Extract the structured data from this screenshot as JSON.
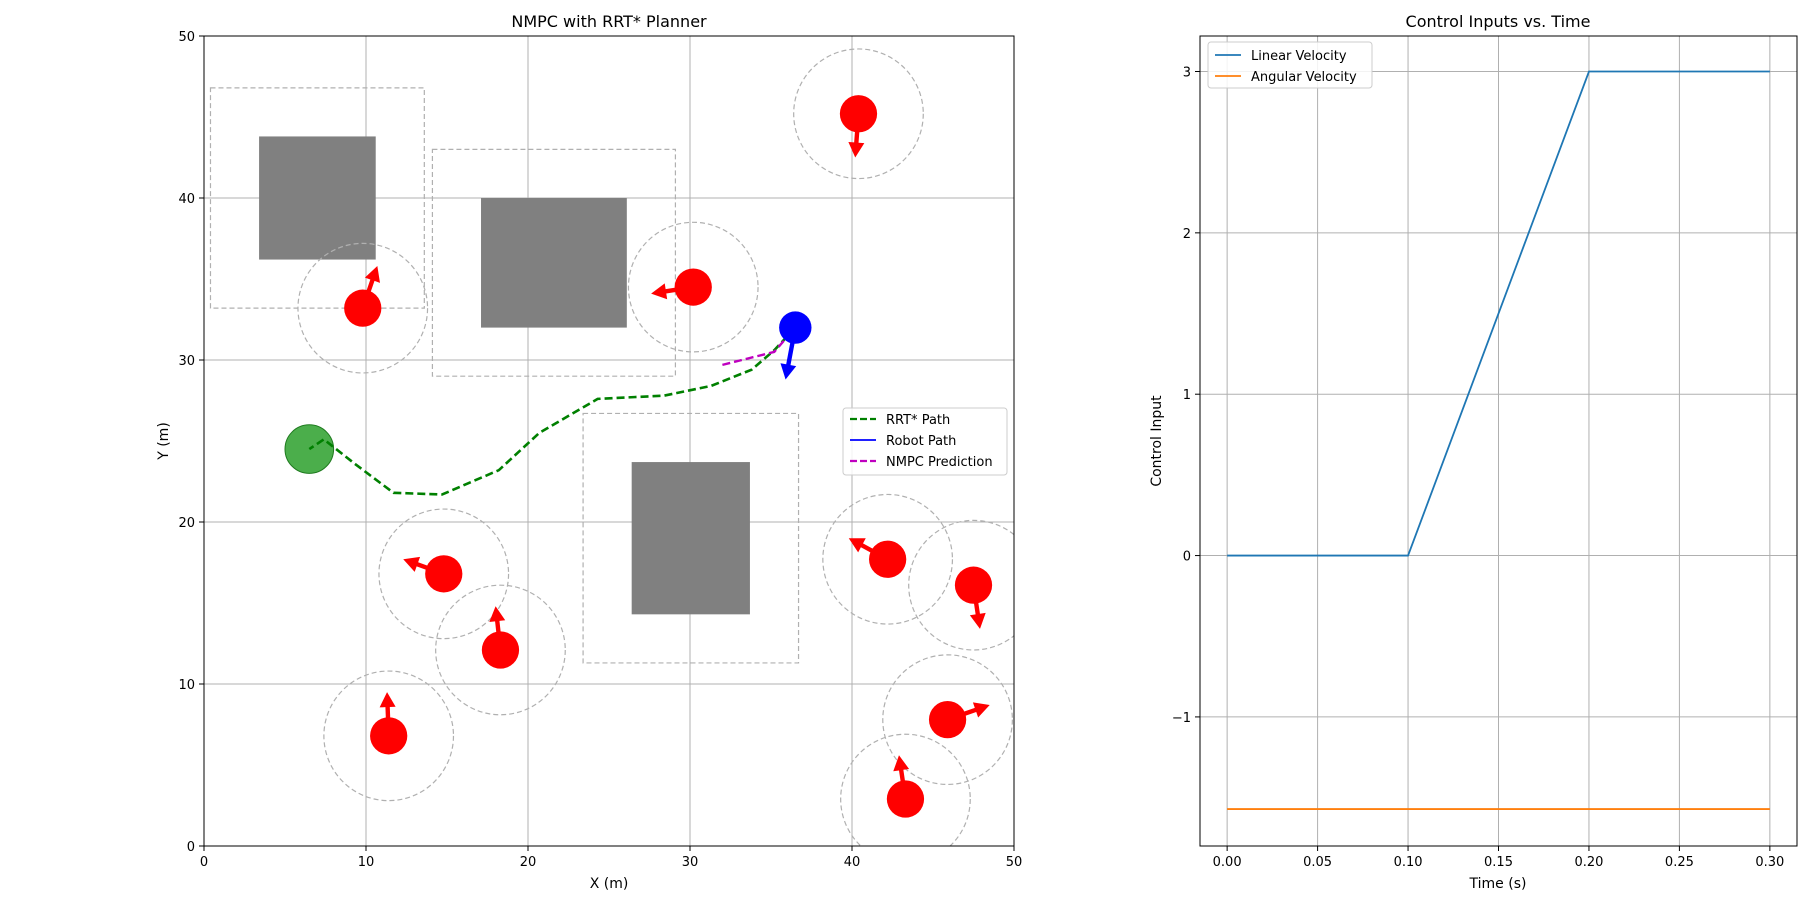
{
  "chart_data": [
    {
      "type": "scatter",
      "title": "NMPC with RRT* Planner",
      "xlabel": "X (m)",
      "ylabel": "Y (m)",
      "xlim": [
        0,
        50
      ],
      "ylim": [
        0,
        50
      ],
      "xticks": [
        0,
        10,
        20,
        30,
        40,
        50
      ],
      "yticks": [
        0,
        10,
        20,
        30,
        40,
        50
      ],
      "grid": true,
      "equal_aspect": true,
      "legend_position": "center-right",
      "legend": [
        "RRT* Path",
        "Robot Path",
        "NMPC Prediction"
      ],
      "colors": {
        "rrt_path": "#008000",
        "robot_path": "#0000ff",
        "nmpc_prediction": "#bf00bf",
        "robot": "#0000ff",
        "goal": "#2ca02c",
        "moving_obstacle": "#ff0000",
        "static_obstacle": "#808080",
        "safety_margin": "#b0b0b0"
      },
      "static_obstacles": [
        {
          "x": [
            3.4,
            10.6
          ],
          "y": [
            36.2,
            43.8
          ],
          "margin_x": [
            0.4,
            13.6
          ],
          "margin_y": [
            33.2,
            46.8
          ]
        },
        {
          "x": [
            17.1,
            26.1
          ],
          "y": [
            32.0,
            40.0
          ],
          "margin_x": [
            14.1,
            29.1
          ],
          "margin_y": [
            29.0,
            43.0
          ]
        },
        {
          "x": [
            26.4,
            33.7
          ],
          "y": [
            14.3,
            23.7
          ],
          "margin_x": [
            23.4,
            36.7
          ],
          "margin_y": [
            11.3,
            26.7
          ]
        }
      ],
      "moving_obstacles": [
        {
          "x": 9.8,
          "y": 33.2,
          "dx": 0.9,
          "dy": 2.6
        },
        {
          "x": 30.2,
          "y": 34.5,
          "dx": -2.6,
          "dy": -0.4
        },
        {
          "x": 40.4,
          "y": 45.2,
          "dx": -0.2,
          "dy": -2.7
        },
        {
          "x": 14.8,
          "y": 16.8,
          "dx": -2.5,
          "dy": 0.9
        },
        {
          "x": 18.3,
          "y": 12.1,
          "dx": -0.3,
          "dy": 2.7
        },
        {
          "x": 11.4,
          "y": 6.8,
          "dx": -0.1,
          "dy": 2.7
        },
        {
          "x": 42.2,
          "y": 17.7,
          "dx": -2.4,
          "dy": 1.3
        },
        {
          "x": 47.5,
          "y": 16.1,
          "dx": 0.4,
          "dy": -2.7
        },
        {
          "x": 45.9,
          "y": 7.8,
          "dx": 2.6,
          "dy": 0.9
        },
        {
          "x": 43.3,
          "y": 2.9,
          "dx": -0.4,
          "dy": 2.7
        }
      ],
      "obstacle_radius": 1.15,
      "safety_radius": 4.0,
      "robot": {
        "x": 36.5,
        "y": 32.0,
        "radius": 1.0,
        "dx": -0.6,
        "dy": -3.2
      },
      "goal": {
        "x": 6.5,
        "y": 24.5,
        "radius": 1.5
      },
      "rrt_path": {
        "x": [
          36.5,
          35.2,
          33.8,
          31.3,
          28.4,
          24.3,
          20.7,
          18.2,
          14.7,
          11.7,
          9.3,
          7.4,
          6.5
        ],
        "y": [
          32.0,
          30.6,
          29.4,
          28.4,
          27.8,
          27.6,
          25.5,
          23.2,
          21.7,
          21.8,
          23.6,
          25.1,
          24.5
        ]
      },
      "robot_path": {
        "x": [
          36.5
        ],
        "y": [
          32.0
        ]
      },
      "nmpc_prediction": {
        "x": [
          32.0,
          33.6,
          35.2,
          36.5
        ],
        "y": [
          29.7,
          30.1,
          30.5,
          32.0
        ]
      }
    },
    {
      "type": "line",
      "title": "Control Inputs vs. Time",
      "xlabel": "Time (s)",
      "ylabel": "Control Input",
      "xlim": [
        -0.015,
        0.315
      ],
      "ylim": [
        -1.8,
        3.22
      ],
      "xticks": [
        "0.00",
        "0.05",
        "0.10",
        "0.15",
        "0.20",
        "0.25",
        "0.30"
      ],
      "yticks": [
        "−1",
        "0",
        "1",
        "2",
        "3"
      ],
      "grid": true,
      "legend_position": "top-left",
      "x": [
        0.0,
        0.1,
        0.2,
        0.3
      ],
      "series": [
        {
          "name": "Linear Velocity",
          "color": "#1f77b4",
          "values": [
            0,
            0,
            3,
            3
          ]
        },
        {
          "name": "Angular Velocity",
          "color": "#ff7f0e",
          "values": [
            -1.571,
            -1.571,
            -1.571,
            -1.571
          ]
        }
      ]
    }
  ]
}
